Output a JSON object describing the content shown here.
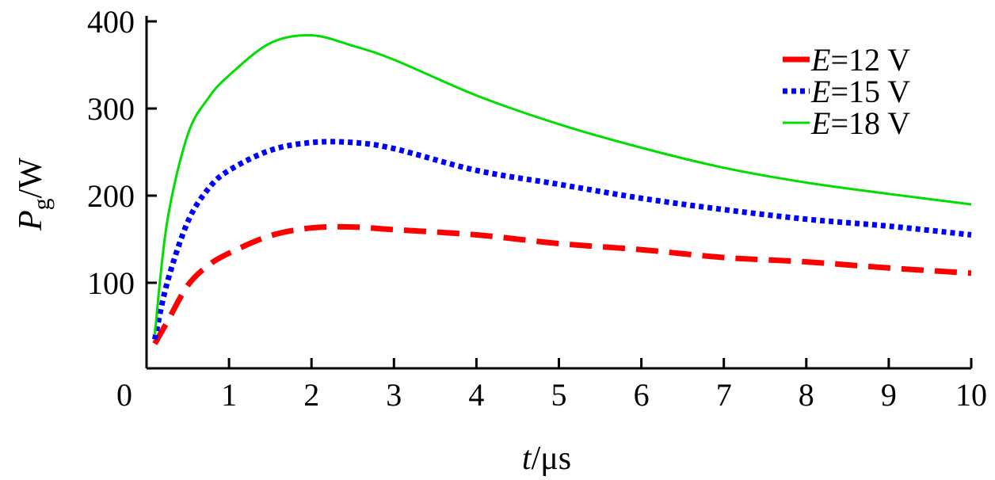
{
  "chart_data": {
    "type": "line",
    "title": "",
    "xlabel": {
      "var": "t",
      "unit": "/μs"
    },
    "ylabel": {
      "var": "P",
      "sub": "g",
      "unit": "/W"
    },
    "xlim": [
      0,
      10
    ],
    "ylim": [
      0,
      400
    ],
    "xticks": [
      "0",
      "1",
      "2",
      "3",
      "4",
      "5",
      "6",
      "7",
      "8",
      "9",
      "10"
    ],
    "yticks": [
      "100",
      "200",
      "300",
      "400"
    ],
    "grid": false,
    "legend_position": "top-right",
    "series": [
      {
        "name": "E=12 V",
        "var": "E",
        "label": "=12 V",
        "color": "#ff0000",
        "style": "dashed",
        "x": [
          0.1,
          0.25,
          0.5,
          0.75,
          1,
          1.5,
          2,
          2.5,
          3,
          4,
          5,
          6,
          7,
          8,
          9,
          10
        ],
        "y": [
          30,
          55,
          97,
          120,
          134,
          154,
          163,
          164,
          161,
          155,
          145,
          138,
          129,
          124,
          117,
          111
        ]
      },
      {
        "name": "E=15 V",
        "var": "E",
        "label": "=15 V",
        "color": "#0000ff",
        "style": "dotted",
        "x": [
          0.1,
          0.25,
          0.5,
          0.75,
          1,
          1.5,
          2,
          2.5,
          3,
          4,
          5,
          6,
          7,
          8,
          9,
          10
        ],
        "y": [
          35,
          100,
          170,
          208,
          229,
          252,
          261,
          261,
          254,
          229,
          213,
          197,
          184,
          173,
          165,
          155
        ]
      },
      {
        "name": "E=18 V",
        "var": "E",
        "label": "=18 V",
        "color": "#00dd00",
        "style": "solid",
        "x": [
          0.1,
          0.25,
          0.5,
          0.75,
          1,
          1.5,
          2,
          2.5,
          3,
          4,
          5,
          6,
          7,
          8,
          9,
          10
        ],
        "y": [
          41,
          170,
          270,
          312,
          338,
          375,
          384,
          372,
          356,
          315,
          282,
          255,
          232,
          215,
          202,
          190
        ]
      }
    ]
  }
}
